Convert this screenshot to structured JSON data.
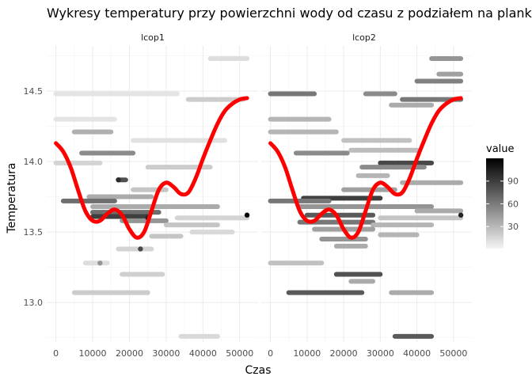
{
  "chart_data": {
    "type": "scatter",
    "title": "Wykresy temperatury przy powierzchni wody od czasu z podziałem na plankto",
    "xlabel": "Czas",
    "ylabel": "Temperatura",
    "xlim": [
      -2500,
      55000
    ],
    "ylim": [
      12.72,
      14.82
    ],
    "x_ticks": [
      0,
      10000,
      20000,
      30000,
      40000,
      50000
    ],
    "y_ticks": [
      13.0,
      13.5,
      14.0,
      14.5
    ],
    "grid": true,
    "legend": {
      "title": "value",
      "placement": "right",
      "ticks": [
        30,
        60,
        90
      ],
      "range": [
        1,
        120
      ],
      "color_low": "#f4f4f4",
      "color_high": "#000000"
    },
    "smooth_color": "#ff0000",
    "panels": [
      {
        "label": "lcop1",
        "segments": [
          {
            "y": 14.73,
            "x0": 42000,
            "x1": 52000,
            "v": 8
          },
          {
            "y": 14.48,
            "x0": 0,
            "x1": 33000,
            "v": 6
          },
          {
            "y": 14.44,
            "x0": 36000,
            "x1": 51000,
            "v": 15
          },
          {
            "y": 14.3,
            "x0": 0,
            "x1": 16000,
            "v": 6
          },
          {
            "y": 14.21,
            "x0": 5000,
            "x1": 15000,
            "v": 28
          },
          {
            "y": 14.15,
            "x0": 21000,
            "x1": 46000,
            "v": 7
          },
          {
            "y": 14.06,
            "x0": 7000,
            "x1": 21000,
            "v": 45
          },
          {
            "y": 13.99,
            "x0": 0,
            "x1": 12000,
            "v": 12
          },
          {
            "y": 13.96,
            "x0": 25000,
            "x1": 42000,
            "v": 15
          },
          {
            "y": 13.87,
            "x0": 17000,
            "x1": 19000,
            "v": 75
          },
          {
            "y": 13.8,
            "x0": 21000,
            "x1": 30000,
            "v": 18
          },
          {
            "y": 13.75,
            "x0": 9000,
            "x1": 26000,
            "v": 30
          },
          {
            "y": 13.72,
            "x0": 2000,
            "x1": 16000,
            "v": 60
          },
          {
            "y": 13.68,
            "x0": 10000,
            "x1": 44000,
            "v": 30
          },
          {
            "y": 13.64,
            "x0": 10000,
            "x1": 28000,
            "v": 60
          },
          {
            "y": 13.61,
            "x0": 10000,
            "x1": 25000,
            "v": 85
          },
          {
            "y": 13.6,
            "x0": 33000,
            "x1": 52000,
            "v": 12
          },
          {
            "y": 13.58,
            "x0": 18000,
            "x1": 30000,
            "v": 40
          },
          {
            "y": 13.55,
            "x0": 30000,
            "x1": 44000,
            "v": 18
          },
          {
            "y": 13.5,
            "x0": 37000,
            "x1": 48000,
            "v": 10
          },
          {
            "y": 13.47,
            "x0": 26000,
            "x1": 34000,
            "v": 18
          },
          {
            "y": 13.38,
            "x0": 17000,
            "x1": 26000,
            "v": 12
          },
          {
            "y": 13.28,
            "x0": 8000,
            "x1": 14000,
            "v": 8
          },
          {
            "y": 13.2,
            "x0": 18000,
            "x1": 29000,
            "v": 14
          },
          {
            "y": 13.07,
            "x0": 5000,
            "x1": 25000,
            "v": 15
          },
          {
            "y": 12.76,
            "x0": 34000,
            "x1": 44000,
            "v": 10
          }
        ],
        "points": [
          {
            "x": 52000,
            "y": 13.62,
            "v": 118
          },
          {
            "x": 17000,
            "y": 13.87,
            "v": 95
          },
          {
            "x": 23000,
            "y": 13.38,
            "v": 80
          },
          {
            "x": 12000,
            "y": 13.28,
            "v": 40
          },
          {
            "x": 25000,
            "y": 13.6,
            "v": 100
          }
        ]
      },
      {
        "label": "lcop2",
        "segments": [
          {
            "y": 14.73,
            "x0": 44000,
            "x1": 52000,
            "v": 40
          },
          {
            "y": 14.62,
            "x0": 46000,
            "x1": 52000,
            "v": 35
          },
          {
            "y": 14.57,
            "x0": 40000,
            "x1": 52000,
            "v": 50
          },
          {
            "y": 14.48,
            "x0": 0,
            "x1": 12000,
            "v": 55
          },
          {
            "y": 14.48,
            "x0": 26000,
            "x1": 34000,
            "v": 45
          },
          {
            "y": 14.44,
            "x0": 36000,
            "x1": 52000,
            "v": 55
          },
          {
            "y": 14.4,
            "x0": 33000,
            "x1": 44000,
            "v": 30
          },
          {
            "y": 14.3,
            "x0": 0,
            "x1": 16000,
            "v": 25
          },
          {
            "y": 14.21,
            "x0": 0,
            "x1": 18000,
            "v": 25
          },
          {
            "y": 14.15,
            "x0": 20000,
            "x1": 38000,
            "v": 20
          },
          {
            "y": 14.08,
            "x0": 22000,
            "x1": 40000,
            "v": 22
          },
          {
            "y": 14.06,
            "x0": 7000,
            "x1": 21000,
            "v": 45
          },
          {
            "y": 13.99,
            "x0": 30000,
            "x1": 44000,
            "v": 80
          },
          {
            "y": 13.96,
            "x0": 25000,
            "x1": 42000,
            "v": 45
          },
          {
            "y": 13.9,
            "x0": 24000,
            "x1": 32000,
            "v": 25
          },
          {
            "y": 13.85,
            "x0": 36000,
            "x1": 52000,
            "v": 30
          },
          {
            "y": 13.8,
            "x0": 20000,
            "x1": 34000,
            "v": 35
          },
          {
            "y": 13.74,
            "x0": 9000,
            "x1": 30000,
            "v": 85
          },
          {
            "y": 13.72,
            "x0": 0,
            "x1": 16000,
            "v": 55
          },
          {
            "y": 13.68,
            "x0": 8000,
            "x1": 44000,
            "v": 40
          },
          {
            "y": 13.65,
            "x0": 40000,
            "x1": 52000,
            "v": 30
          },
          {
            "y": 13.62,
            "x0": 10000,
            "x1": 28000,
            "v": 70
          },
          {
            "y": 13.6,
            "x0": 30000,
            "x1": 52000,
            "v": 18
          },
          {
            "y": 13.57,
            "x0": 8000,
            "x1": 28000,
            "v": 55
          },
          {
            "y": 13.55,
            "x0": 28000,
            "x1": 44000,
            "v": 25
          },
          {
            "y": 13.52,
            "x0": 12000,
            "x1": 28000,
            "v": 35
          },
          {
            "y": 13.48,
            "x0": 30000,
            "x1": 40000,
            "v": 25
          },
          {
            "y": 13.45,
            "x0": 14000,
            "x1": 26000,
            "v": 40
          },
          {
            "y": 13.4,
            "x0": 18000,
            "x1": 26000,
            "v": 30
          },
          {
            "y": 13.28,
            "x0": 0,
            "x1": 14000,
            "v": 20
          },
          {
            "y": 13.2,
            "x0": 18000,
            "x1": 30000,
            "v": 75
          },
          {
            "y": 13.15,
            "x0": 22000,
            "x1": 28000,
            "v": 30
          },
          {
            "y": 13.07,
            "x0": 5000,
            "x1": 25000,
            "v": 70
          },
          {
            "y": 13.07,
            "x0": 33000,
            "x1": 44000,
            "v": 30
          },
          {
            "y": 12.76,
            "x0": 34000,
            "x1": 44000,
            "v": 70
          }
        ],
        "points": [
          {
            "x": 52000,
            "y": 13.62,
            "v": 100
          }
        ]
      }
    ],
    "smooth": {
      "x": [
        0,
        2000,
        4000,
        6000,
        8000,
        10000,
        12000,
        14000,
        16000,
        18000,
        20000,
        22000,
        24000,
        26000,
        28000,
        30000,
        32000,
        34000,
        36000,
        38000,
        40000,
        42000,
        44000,
        46000,
        48000,
        50000,
        52000
      ],
      "y": [
        14.13,
        14.07,
        13.96,
        13.8,
        13.65,
        13.58,
        13.58,
        13.63,
        13.66,
        13.62,
        13.52,
        13.46,
        13.5,
        13.65,
        13.8,
        13.85,
        13.82,
        13.77,
        13.78,
        13.88,
        14.02,
        14.15,
        14.27,
        14.36,
        14.41,
        14.44,
        14.45
      ]
    }
  }
}
